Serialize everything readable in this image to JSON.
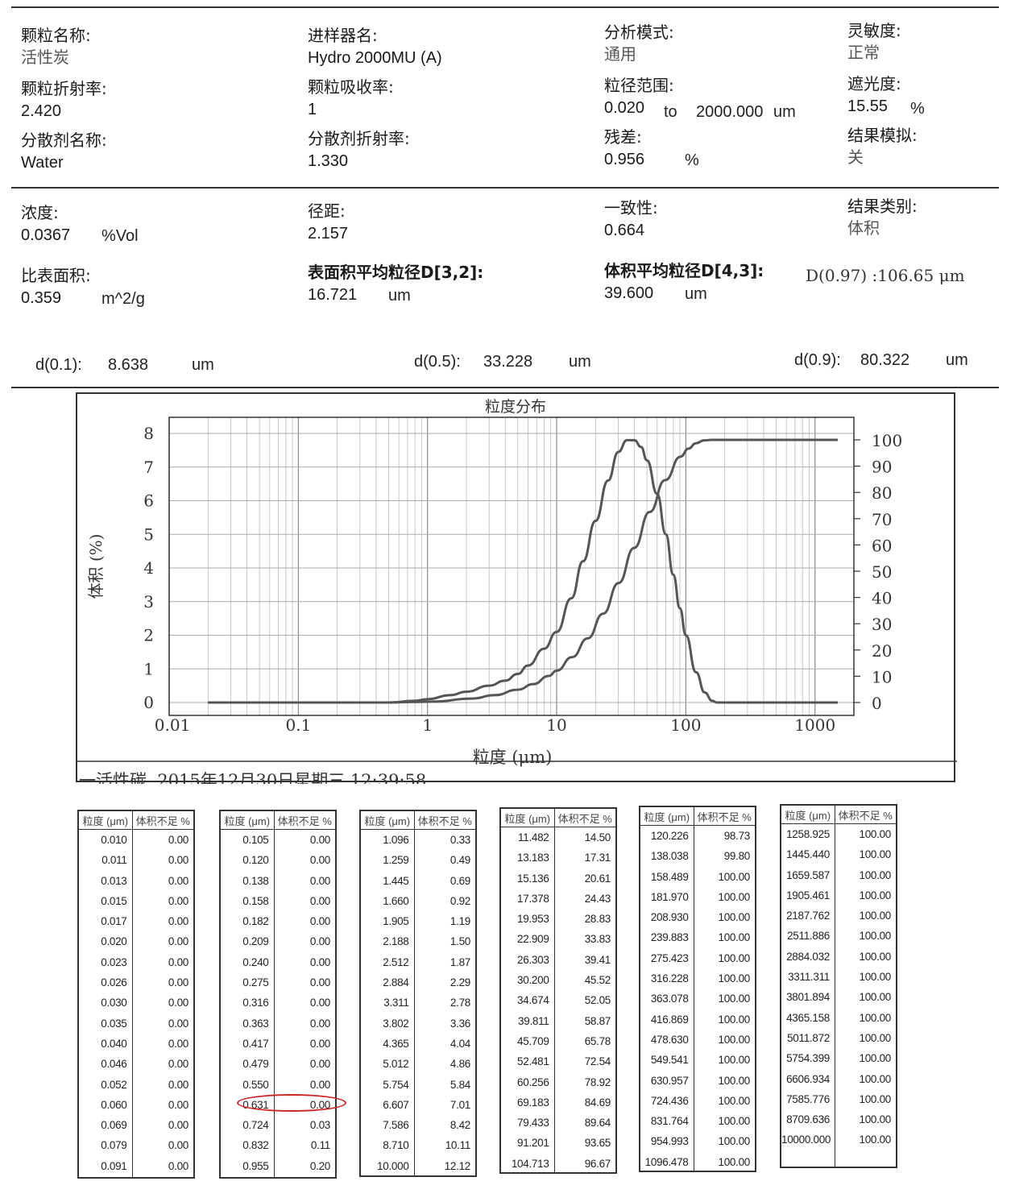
{
  "header": {
    "items": [
      {
        "label": "颗粒名称:",
        "value": "活性炭"
      },
      {
        "label": "进样器名:",
        "value": "Hydro 2000MU (A)"
      },
      {
        "label": "分析模式:",
        "value": "通用"
      },
      {
        "label": "灵敏度:",
        "value": "正常"
      },
      {
        "label": "颗粒折射率:",
        "value": "2.420"
      },
      {
        "label": "颗粒吸收率:",
        "value": "1"
      },
      {
        "label": "粒径范围:",
        "value": "0.020",
        "to": "to",
        "value2": "2000.000",
        "unit": "um"
      },
      {
        "label": "遮光度:",
        "value": "15.55",
        "unit": "%"
      },
      {
        "label": "分散剂名称:",
        "value": "Water"
      },
      {
        "label": "分散剂折射率:",
        "value": "1.330"
      },
      {
        "label": "残差:",
        "value": "0.956",
        "unit": "%"
      },
      {
        "label": "结果模拟:",
        "value": "关"
      }
    ]
  },
  "results": {
    "concentration": {
      "label": "浓度:",
      "value": "0.0367",
      "unit": "%Vol"
    },
    "span": {
      "label": "径距:",
      "value": "2.157"
    },
    "uniformity": {
      "label": "一致性:",
      "value": "0.664"
    },
    "result_type": {
      "label": "结果类别:",
      "value": "体积"
    },
    "ssa": {
      "label": "比表面积:",
      "value": "0.359",
      "unit": "m^2/g"
    },
    "d32": {
      "label": "表面积平均粒径D[3,2]:",
      "value": "16.721",
      "unit": "um"
    },
    "d43": {
      "label": "体积平均粒径D[4,3]:",
      "value": "39.600",
      "unit": "um"
    },
    "d97": "D(0.97) :106.65 μm"
  },
  "percentiles": {
    "d10": {
      "label": "d(0.1):",
      "value": "8.638",
      "unit": "um"
    },
    "d50": {
      "label": "d(0.5):",
      "value": "33.228",
      "unit": "um"
    },
    "d90": {
      "label": "d(0.9):",
      "value": "80.322",
      "unit": "um"
    }
  },
  "chart_data": {
    "type": "line",
    "title": "粒度分布",
    "xlabel": "粒度 (μm)",
    "ylabel": "体积 (%)",
    "x_scale": "log",
    "xlim": [
      0.01,
      2000
    ],
    "ylim_left": [
      0,
      8
    ],
    "ylim_right": [
      0,
      100
    ],
    "x_ticks": [
      "0.01",
      "0.1",
      "1",
      "10",
      "100",
      "1000"
    ],
    "y_ticks_left": [
      "0",
      "1",
      "2",
      "3",
      "4",
      "5",
      "6",
      "7",
      "8"
    ],
    "y_ticks_right": [
      "0",
      "10",
      "20",
      "30",
      "40",
      "50",
      "60",
      "70",
      "80",
      "90",
      "100"
    ],
    "grid": true,
    "series": [
      {
        "axis": "left",
        "color": "#555555",
        "x": [
          0.02,
          0.5,
          0.8,
          1.0,
          1.5,
          2.0,
          3.0,
          4.0,
          5.0,
          6.0,
          8.0,
          10.0,
          13.0,
          16.0,
          20.0,
          25.0,
          30.0,
          35.0,
          40.0,
          45.0,
          50.0,
          60.0,
          70.0,
          80.0,
          90.0,
          100.0,
          120.0,
          140.0,
          160.0,
          175.0,
          2000
        ],
        "y": [
          0,
          0,
          0.05,
          0.1,
          0.22,
          0.32,
          0.5,
          0.65,
          0.85,
          1.1,
          1.6,
          2.1,
          3.1,
          4.2,
          5.4,
          6.6,
          7.45,
          7.8,
          7.8,
          7.6,
          7.2,
          6.2,
          5.0,
          3.8,
          2.8,
          2.0,
          0.9,
          0.3,
          0.05,
          0,
          0
        ]
      },
      {
        "axis": "right",
        "color": "#555555",
        "x": [
          0.02,
          0.5,
          0.8,
          1.1,
          2.2,
          3.3,
          5.0,
          6.6,
          8.7,
          10.0,
          13.2,
          17.4,
          22.9,
          30.2,
          39.8,
          52.5,
          69.2,
          91.2,
          104.7,
          120.2,
          138.0,
          158.5,
          2000
        ],
        "y": [
          0,
          0,
          0.2,
          0.33,
          1.5,
          2.78,
          4.86,
          7.01,
          10.11,
          12.12,
          17.31,
          24.43,
          33.83,
          45.52,
          58.87,
          72.54,
          84.69,
          93.65,
          96.67,
          98.73,
          99.8,
          100,
          100
        ]
      }
    ],
    "caption": "一活性碳, 2015年12月30日星期三 12:39:58"
  },
  "tables": {
    "header": [
      "粒度 (μm)",
      "体积不足 %"
    ],
    "columns": [
      {
        "sizes": [
          "0.010",
          "0.011",
          "0.013",
          "0.015",
          "0.017",
          "0.020",
          "0.023",
          "0.026",
          "0.030",
          "0.035",
          "0.040",
          "0.046",
          "0.052",
          "0.060",
          "0.069",
          "0.079",
          "0.091"
        ],
        "values": [
          "0.00",
          "0.00",
          "0.00",
          "0.00",
          "0.00",
          "0.00",
          "0.00",
          "0.00",
          "0.00",
          "0.00",
          "0.00",
          "0.00",
          "0.00",
          "0.00",
          "0.00",
          "0.00",
          "0.00"
        ]
      },
      {
        "sizes": [
          "0.105",
          "0.120",
          "0.138",
          "0.158",
          "0.182",
          "0.209",
          "0.240",
          "0.275",
          "0.316",
          "0.363",
          "0.417",
          "0.479",
          "0.550",
          "0.631",
          "0.724",
          "0.832",
          "0.955"
        ],
        "values": [
          "0.00",
          "0.00",
          "0.00",
          "0.00",
          "0.00",
          "0.00",
          "0.00",
          "0.00",
          "0.00",
          "0.00",
          "0.00",
          "0.00",
          "0.00",
          "0.00",
          "0.03",
          "0.11",
          "0.20"
        ]
      },
      {
        "sizes": [
          "1.096",
          "1.259",
          "1.445",
          "1.660",
          "1.905",
          "2.188",
          "2.512",
          "2.884",
          "3.311",
          "3.802",
          "4.365",
          "5.012",
          "5.754",
          "6.607",
          "7.586",
          "8.710",
          "10.000"
        ],
        "values": [
          "0.33",
          "0.49",
          "0.69",
          "0.92",
          "1.19",
          "1.50",
          "1.87",
          "2.29",
          "2.78",
          "3.36",
          "4.04",
          "4.86",
          "5.84",
          "7.01",
          "8.42",
          "10.11",
          "12.12"
        ]
      },
      {
        "sizes": [
          "11.482",
          "13.183",
          "15.136",
          "17.378",
          "19.953",
          "22.909",
          "26.303",
          "30.200",
          "34.674",
          "39.811",
          "45.709",
          "52.481",
          "60.256",
          "69.183",
          "79.433",
          "91.201",
          "104.713"
        ],
        "values": [
          "14.50",
          "17.31",
          "20.61",
          "24.43",
          "28.83",
          "33.83",
          "39.41",
          "45.52",
          "52.05",
          "58.87",
          "65.78",
          "72.54",
          "78.92",
          "84.69",
          "89.64",
          "93.65",
          "96.67"
        ]
      },
      {
        "sizes": [
          "120.226",
          "138.038",
          "158.489",
          "181.970",
          "208.930",
          "239.883",
          "275.423",
          "316.228",
          "363.078",
          "416.869",
          "478.630",
          "549.541",
          "630.957",
          "724.436",
          "831.764",
          "954.993",
          "1096.478"
        ],
        "values": [
          "98.73",
          "99.80",
          "100.00",
          "100.00",
          "100.00",
          "100.00",
          "100.00",
          "100.00",
          "100.00",
          "100.00",
          "100.00",
          "100.00",
          "100.00",
          "100.00",
          "100.00",
          "100.00",
          "100.00"
        ]
      },
      {
        "sizes": [
          "1258.925",
          "1445.440",
          "1659.587",
          "1905.461",
          "2187.762",
          "2511.886",
          "2884.032",
          "3311.311",
          "3801.894",
          "4365.158",
          "5011.872",
          "5754.399",
          "6606.934",
          "7585.776",
          "8709.636",
          "10000.000"
        ],
        "values": [
          "100.00",
          "100.00",
          "100.00",
          "100.00",
          "100.00",
          "100.00",
          "100.00",
          "100.00",
          "100.00",
          "100.00",
          "100.00",
          "100.00",
          "100.00",
          "100.00",
          "100.00",
          "100.00"
        ]
      }
    ],
    "highlight": {
      "table": 1,
      "row": 13,
      "color": "#cc2222"
    }
  }
}
